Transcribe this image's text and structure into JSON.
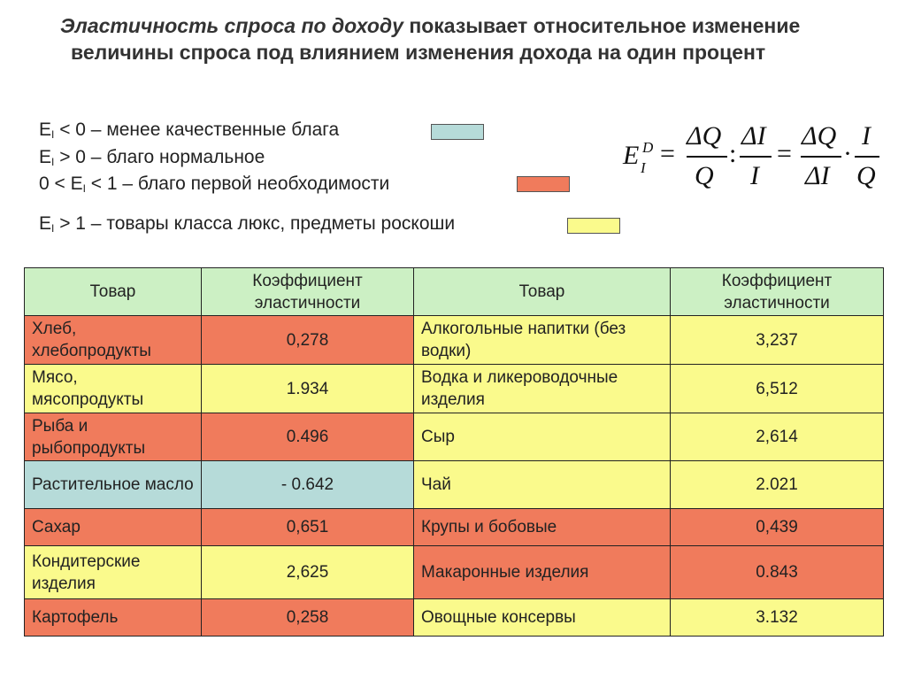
{
  "heading": {
    "italic": "Эластичность спроса по доходу",
    "rest": " показывает относительное изменение величины спроса под влиянием изменения дохода на один процент"
  },
  "legend": [
    {
      "pre": "E",
      "sub": "I",
      "post": " < 0 – менее качественные блага",
      "color": "#b6dbd9"
    },
    {
      "pre": "E",
      "sub": "I",
      "post": " > 0 – благо нормальное",
      "color": ""
    },
    {
      "pre": "0 < E",
      "sub": "I",
      "post": " < 1 – благо первой необходимости",
      "color": "#f07b5c"
    },
    {
      "pre": "E",
      "sub": "I",
      "post": " > 1 – товары класса люкс, предметы роскоши",
      "color": "#fafa8c"
    }
  ],
  "formula": {
    "lhs": "E",
    "lhs_sup": "D",
    "lhs_sub": "I",
    "eq": "=",
    "colon": ":",
    "dot": "·",
    "f1_num": "ΔQ",
    "f1_den": "Q",
    "f2_num": "ΔI",
    "f2_den": "I",
    "f3_num": "ΔQ",
    "f3_den": "ΔI",
    "f4_num": "I",
    "f4_den": "Q"
  },
  "table": {
    "headers": [
      "Товар",
      "Коэффициент эластичности",
      "Товар",
      "Коэффициент эластичности"
    ],
    "rows": [
      {
        "left": {
          "name": "Хлеб, хлебопродукты",
          "value": "0,278",
          "cat": "red"
        },
        "right": {
          "name": "Алкогольные напитки (без водки)",
          "value": "3,237",
          "cat": "yellow"
        }
      },
      {
        "left": {
          "name": "Мясо, мясопродукты",
          "value": "1.934",
          "cat": "yellow"
        },
        "right": {
          "name": "Водка и ликероводочные изделия",
          "value": "6,512",
          "cat": "yellow"
        }
      },
      {
        "left": {
          "name": "Рыба и рыбопродукты",
          "value": "0.496",
          "cat": "red"
        },
        "right": {
          "name": "Сыр",
          "value": "2,614",
          "cat": "yellow"
        }
      },
      {
        "left": {
          "name": "Растительное масло",
          "value": "- 0.642",
          "cat": "blue"
        },
        "right": {
          "name": "Чай",
          "value": "2.021",
          "cat": "yellow"
        }
      },
      {
        "left": {
          "name": "Сахар",
          "value": "0,651",
          "cat": "red"
        },
        "right": {
          "name": "Крупы и бобовые",
          "value": "0,439",
          "cat": "red"
        }
      },
      {
        "left": {
          "name": "Кондитерские изделия",
          "value": "2,625",
          "cat": "yellow"
        },
        "right": {
          "name": "Макаронные изделия",
          "value": "0.843",
          "cat": "red"
        }
      },
      {
        "left": {
          "name": "Картофель",
          "value": "0,258",
          "cat": "red"
        },
        "right": {
          "name": "Овощные консервы",
          "value": "3.132",
          "cat": "yellow"
        }
      }
    ]
  }
}
